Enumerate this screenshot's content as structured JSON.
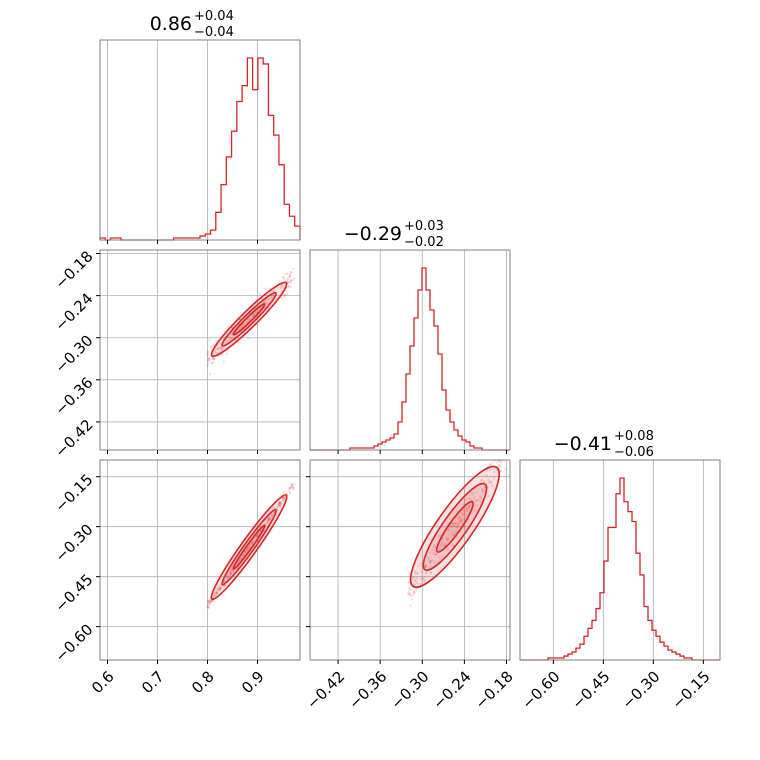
{
  "chart_data": {
    "type": "corner",
    "color": "#d62728",
    "grid": true,
    "variables": [
      {
        "title_main": "0.86",
        "title_upper": "+0.04",
        "title_lower": "−0.04",
        "range": [
          0.585,
          0.985
        ],
        "ticks": [
          0.6,
          0.7,
          0.8,
          0.9
        ],
        "tick_labels": [
          "0.6",
          "0.7",
          "0.8",
          "0.9"
        ],
        "hist_counts": [
          1,
          0,
          1,
          1,
          0,
          0,
          0,
          0,
          0,
          0,
          0,
          0,
          0,
          0,
          1,
          1,
          1,
          1,
          1,
          2,
          3,
          5,
          14,
          28,
          42,
          55,
          70,
          78,
          92,
          76,
          92,
          89,
          63,
          53,
          38,
          18,
          12,
          7
        ]
      },
      {
        "title_main": "−0.29",
        "title_upper": "+0.03",
        "title_lower": "−0.02",
        "range": [
          -0.46,
          -0.175
        ],
        "ticks": [
          -0.18,
          -0.24,
          -0.3,
          -0.36,
          -0.42
        ],
        "tick_labels": [
          "−0.18",
          "−0.24",
          "−0.30",
          "−0.36",
          "−0.42"
        ],
        "hist_counts": [
          0,
          0,
          0,
          0,
          0,
          0,
          0,
          0,
          0,
          0,
          1,
          1,
          1,
          1,
          1,
          1,
          2,
          3,
          4,
          5,
          6,
          8,
          14,
          24,
          38,
          52,
          66,
          80,
          91,
          80,
          70,
          62,
          48,
          30,
          20,
          14,
          10,
          7,
          5,
          4,
          2,
          1,
          1,
          0,
          0,
          0,
          0,
          0,
          0,
          0
        ]
      },
      {
        "title_main": "−0.41",
        "title_upper": "+0.08",
        "title_lower": "−0.06",
        "range": [
          -0.7,
          -0.1
        ],
        "ticks": [
          -0.6,
          -0.45,
          -0.3,
          -0.15
        ],
        "tick_labels": [
          "−0.60",
          "−0.45",
          "−0.30",
          "−0.15"
        ],
        "hist_counts": [
          0,
          0,
          0,
          0,
          0,
          0,
          0,
          1,
          1,
          1,
          1,
          2,
          3,
          4,
          6,
          8,
          12,
          16,
          20,
          26,
          34,
          50,
          67,
          67,
          84,
          92,
          80,
          75,
          70,
          54,
          43,
          27,
          20,
          15,
          12,
          9,
          7,
          5,
          4,
          3,
          2,
          1,
          1,
          0,
          0,
          0,
          0,
          0,
          0,
          0
        ]
      }
    ],
    "pairs": [
      {
        "x": 0,
        "y": 1,
        "slope": 0.7,
        "ref": [
          0.86,
          -0.29
        ],
        "xspan": [
          0.8,
          0.975
        ],
        "spread": 0.009
      },
      {
        "x": 0,
        "y": 2,
        "slope": 2.1,
        "ref": [
          0.86,
          -0.41
        ],
        "xspan": [
          0.8,
          0.975
        ],
        "spread": 0.007
      },
      {
        "x": 1,
        "y": 2,
        "slope": 3.0,
        "ref": [
          -0.29,
          -0.41
        ],
        "xspan": [
          -0.32,
          -0.18
        ],
        "spread": 0.025
      }
    ]
  }
}
